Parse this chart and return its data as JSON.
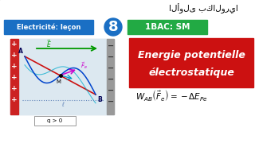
{
  "bg_color": "#111111",
  "top_arabic": "الأولى بكالوريا",
  "label_left_text": "Electricité: leçon",
  "label_left_bg": "#1a6fc4",
  "label_left_color": "#ffffff",
  "number_text": "8",
  "number_bg": "#1a6fc4",
  "number_color": "#ffffff",
  "label_right_text": "1BAC: SM",
  "label_right_bg": "#22aa44",
  "label_right_color": "#ffffff",
  "main_title_line1": "Energie potentielle",
  "main_title_line2": "électrostatique",
  "main_title_bg": "#cc1111",
  "main_title_color": "#ffffff",
  "formula_color": "#000000",
  "diagram_bg": "#ccd8e8",
  "field_arrow_color": "#009900",
  "force_arrow_color": "#cc00cc",
  "path_color_blue": "#0044cc",
  "path_color_cyan": "#00aacc",
  "diag_line_color": "#cc2222",
  "plus_color": "#cc2222",
  "q_label": "q > 0",
  "white": "#ffffff",
  "gray_plate": "#999999",
  "black": "#000000"
}
